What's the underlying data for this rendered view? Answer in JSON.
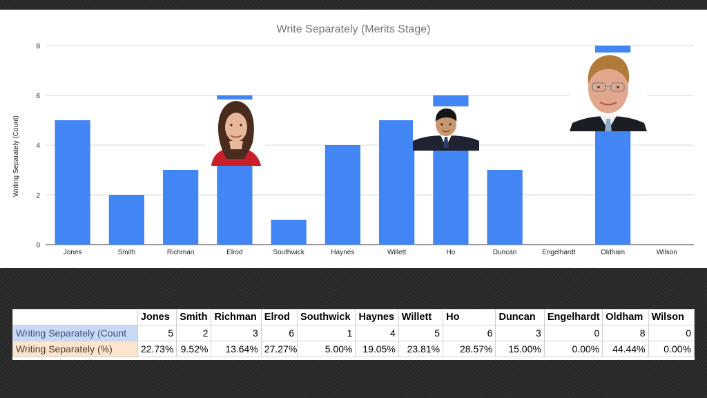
{
  "chart_data": {
    "type": "bar",
    "title": "Write Separately (Merits Stage)",
    "ylabel": "Writing Separately (Count)",
    "xlabel": "",
    "ylim": [
      0,
      8
    ],
    "yticks": [
      0,
      2,
      4,
      6,
      8
    ],
    "grid": true,
    "categories": [
      "Jones",
      "Smith",
      "Richman",
      "Elrod",
      "Southwick",
      "Haynes",
      "Willett",
      "Ho",
      "Duncan",
      "Engelhardt",
      "Oldham",
      "Wilson"
    ],
    "values": [
      5,
      2,
      3,
      6,
      1,
      4,
      5,
      6,
      3,
      0,
      8,
      0
    ],
    "bar_color": "#4285f4",
    "photos_on_bars": [
      "Elrod",
      "Ho",
      "Oldham"
    ]
  },
  "table": {
    "headers": [
      "",
      "Jones",
      "Smith",
      "Richman",
      "Elrod",
      "Southwick",
      "Haynes",
      "Willett",
      "Ho",
      "Duncan",
      "Engelhardt",
      "Oldham",
      "Wilson"
    ],
    "rows": [
      {
        "label": "Writing Separately (Count",
        "values": [
          "5",
          "2",
          "3",
          "6",
          "1",
          "4",
          "5",
          "6",
          "3",
          "0",
          "8",
          "0"
        ]
      },
      {
        "label": "Writing Separately (%)",
        "values": [
          "22.73%",
          "9.52%",
          "13.64%",
          "27.27%",
          "5.00%",
          "19.05%",
          "23.81%",
          "28.57%",
          "15.00%",
          "0.00%",
          "44.44%",
          "0.00%"
        ]
      }
    ]
  }
}
